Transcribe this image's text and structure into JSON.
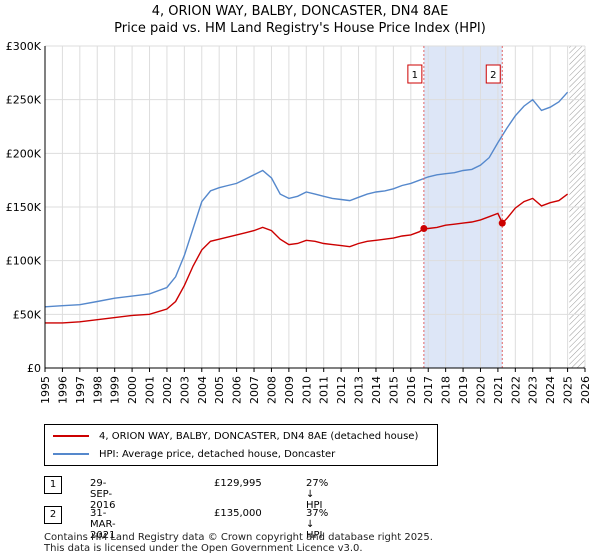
{
  "title_line1": "4, ORION WAY, BALBY, DONCASTER, DN4 8AE",
  "title_line2": "Price paid vs. HM Land Registry's House Price Index (HPI)",
  "colors": {
    "price_series": "#cc0000",
    "hpi_series": "#5588cc",
    "shade": "#dde6f7",
    "marker_line": "#e06666",
    "grid": "#dddddd"
  },
  "chart_data": {
    "type": "line",
    "title": "4, ORION WAY, BALBY, DONCASTER, DN4 8AE — Price paid vs. HM Land Registry's House Price Index (HPI)",
    "xlim": [
      1995,
      2026
    ],
    "ylim": [
      0,
      300000
    ],
    "x_ticks": [
      "1995",
      "1996",
      "1997",
      "1998",
      "1999",
      "2000",
      "2001",
      "2002",
      "2003",
      "2004",
      "2005",
      "2006",
      "2007",
      "2008",
      "2009",
      "2010",
      "2011",
      "2012",
      "2013",
      "2014",
      "2015",
      "2016",
      "2017",
      "2018",
      "2019",
      "2020",
      "2021",
      "2022",
      "2023",
      "2024",
      "2025",
      "2026"
    ],
    "y_ticks": [
      {
        "value": 0,
        "label": "£0"
      },
      {
        "value": 50000,
        "label": "£50K"
      },
      {
        "value": 100000,
        "label": "£100K"
      },
      {
        "value": 150000,
        "label": "£150K"
      },
      {
        "value": 200000,
        "label": "£200K"
      },
      {
        "value": 250000,
        "label": "£250K"
      },
      {
        "value": 300000,
        "label": "£300K"
      }
    ],
    "grid": true,
    "shaded_period": [
      2016.75,
      2021.25
    ],
    "future_hatch_from": 2025.1,
    "series": [
      {
        "name": "4, ORION WAY, BALBY, DONCASTER, DN4 8AE (detached house)",
        "color": "#cc0000",
        "x": [
          1995,
          1996,
          1997,
          1998,
          1999,
          2000,
          2001,
          2002,
          2002.5,
          2003,
          2003.5,
          2004,
          2004.5,
          2005,
          2005.5,
          2006,
          2006.5,
          2007,
          2007.5,
          2008,
          2008.5,
          2009,
          2009.5,
          2010,
          2010.5,
          2011,
          2011.5,
          2012,
          2012.5,
          2013,
          2013.5,
          2014,
          2014.5,
          2015,
          2015.5,
          2016,
          2016.5,
          2016.75,
          2017,
          2017.5,
          2018,
          2018.5,
          2019,
          2019.5,
          2020,
          2020.5,
          2021,
          2021.25,
          2021.5,
          2022,
          2022.5,
          2023,
          2023.5,
          2024,
          2024.5,
          2025
        ],
        "values": [
          42000,
          42000,
          43000,
          45000,
          47000,
          49000,
          50000,
          55000,
          62000,
          77000,
          95000,
          110000,
          118000,
          120000,
          122000,
          124000,
          126000,
          128000,
          131000,
          128000,
          120000,
          115000,
          116000,
          119000,
          118000,
          116000,
          115000,
          114000,
          113000,
          116000,
          118000,
          119000,
          120000,
          121000,
          123000,
          124000,
          127000,
          129995,
          130000,
          131000,
          133000,
          134000,
          135000,
          136000,
          138000,
          141000,
          144000,
          135000,
          139000,
          149000,
          155000,
          158000,
          151000,
          154000,
          156000,
          162000
        ]
      },
      {
        "name": "HPI: Average price, detached house, Doncaster",
        "color": "#5588cc",
        "x": [
          1995,
          1996,
          1997,
          1998,
          1999,
          2000,
          2001,
          2002,
          2002.5,
          2003,
          2003.5,
          2004,
          2004.5,
          2005,
          2005.5,
          2006,
          2006.5,
          2007,
          2007.5,
          2008,
          2008.5,
          2009,
          2009.5,
          2010,
          2010.5,
          2011,
          2011.5,
          2012,
          2012.5,
          2013,
          2013.5,
          2014,
          2014.5,
          2015,
          2015.5,
          2016,
          2016.5,
          2017,
          2017.5,
          2018,
          2018.5,
          2019,
          2019.5,
          2020,
          2020.5,
          2021,
          2021.5,
          2022,
          2022.5,
          2023,
          2023.5,
          2024,
          2024.5,
          2025
        ],
        "values": [
          57000,
          58000,
          59000,
          62000,
          65000,
          67000,
          69000,
          75000,
          85000,
          105000,
          130000,
          155000,
          165000,
          168000,
          170000,
          172000,
          176000,
          180000,
          184000,
          177000,
          162000,
          158000,
          160000,
          164000,
          162000,
          160000,
          158000,
          157000,
          156000,
          159000,
          162000,
          164000,
          165000,
          167000,
          170000,
          172000,
          175000,
          178000,
          180000,
          181000,
          182000,
          184000,
          185000,
          189000,
          196000,
          210000,
          223000,
          235000,
          244000,
          250000,
          240000,
          243000,
          248000,
          257000
        ]
      }
    ],
    "annotations": [
      {
        "label": "1",
        "x": 2016.75
      },
      {
        "label": "2",
        "x": 2021.25
      }
    ],
    "sale_points": [
      {
        "x": 2016.75,
        "y": 129995
      },
      {
        "x": 2021.25,
        "y": 135000
      }
    ]
  },
  "legend": {
    "items": [
      {
        "label": "4, ORION WAY, BALBY, DONCASTER, DN4 8AE (detached house)"
      },
      {
        "label": "HPI: Average price, detached house, Doncaster"
      }
    ]
  },
  "transactions": [
    {
      "num": "1",
      "date": "29-SEP-2016",
      "price": "£129,995",
      "hpi_diff": "27% ↓ HPI"
    },
    {
      "num": "2",
      "date": "31-MAR-2021",
      "price": "£135,000",
      "hpi_diff": "37% ↓ HPI"
    }
  ],
  "footer": {
    "line1": "Contains HM Land Registry data © Crown copyright and database right 2025.",
    "line2": "This data is licensed under the Open Government Licence v3.0."
  }
}
